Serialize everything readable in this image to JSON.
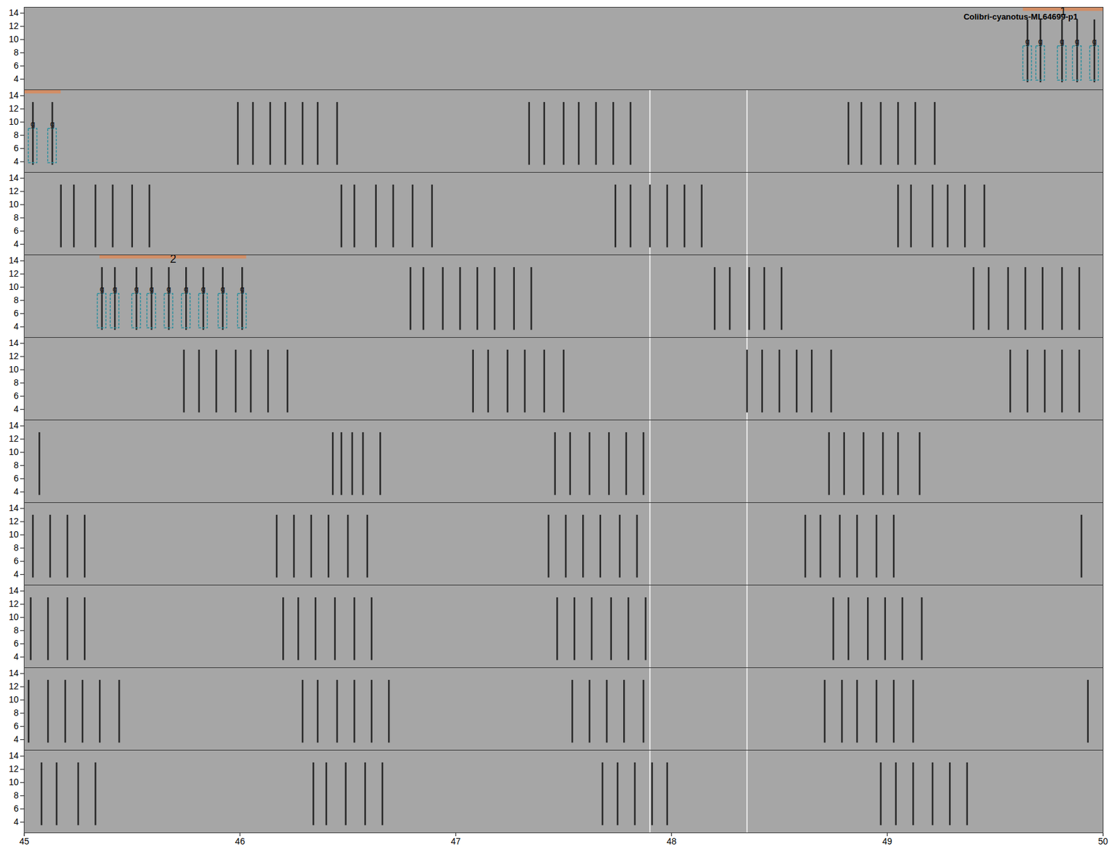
{
  "chart_data": {
    "type": "spectrogram",
    "title": "Colibri-cyanotus-ML64699-p1",
    "xlim": [
      45,
      50
    ],
    "xticks": [
      45,
      46,
      47,
      48,
      49,
      50
    ],
    "ylim": [
      2.4,
      14.9
    ],
    "yticks": [
      4,
      6,
      8,
      10,
      12,
      14
    ],
    "syllable_freq_range": [
      3.5,
      13
    ],
    "box_freq_range": [
      3.8,
      9
    ],
    "band_freq_range": [
      14.3,
      14.9
    ],
    "box_color": "#2a8f9e",
    "band_color": "#d98a5a",
    "color": "#1c1c1c",
    "rows": [
      {
        "syllables": [
          49.65,
          49.71,
          49.81,
          49.88,
          49.96
        ],
        "boundaries": [],
        "boxes": [
          {
            "x1": 49.63,
            "x2": 49.67,
            "label": "g"
          },
          {
            "x1": 49.69,
            "x2": 49.73,
            "label": "g"
          },
          {
            "x1": 49.79,
            "x2": 49.83,
            "label": "g"
          },
          {
            "x1": 49.86,
            "x2": 49.9,
            "label": "g"
          },
          {
            "x1": 49.94,
            "x2": 49.98,
            "label": "g"
          }
        ],
        "bands": [
          {
            "start": 49.63,
            "end": 50,
            "label": "1"
          }
        ]
      },
      {
        "syllables": [
          45.04,
          45.13,
          45.99,
          46.06,
          46.14,
          46.21,
          46.29,
          46.36,
          46.45,
          47.34,
          47.41,
          47.5,
          47.57,
          47.65,
          47.73,
          47.81,
          48.82,
          48.88,
          48.97,
          49.05,
          49.13,
          49.22
        ],
        "boundaries": [
          47.9,
          48.35
        ],
        "boxes": [
          {
            "x1": 45.02,
            "x2": 45.06,
            "label": "g"
          },
          {
            "x1": 45.11,
            "x2": 45.15,
            "label": "g"
          }
        ],
        "bands": [
          {
            "start": 45,
            "end": 45.17
          }
        ]
      },
      {
        "syllables": [
          45.17,
          45.23,
          45.33,
          45.41,
          45.5,
          45.58,
          46.47,
          46.53,
          46.63,
          46.71,
          46.8,
          46.89,
          47.74,
          47.81,
          47.9,
          47.98,
          48.06,
          48.14,
          49.05,
          49.11,
          49.21,
          49.28,
          49.36,
          49.45
        ],
        "boundaries": [
          47.9,
          48.35
        ],
        "boxes": [],
        "bands": []
      },
      {
        "syllables": [
          45.36,
          45.42,
          45.52,
          45.59,
          45.67,
          45.75,
          45.83,
          45.92,
          46.01,
          46.79,
          46.85,
          46.94,
          47.02,
          47.1,
          47.18,
          47.27,
          47.35,
          48.2,
          48.27,
          48.36,
          48.43,
          48.51,
          49.4,
          49.47,
          49.56,
          49.64,
          49.72,
          49.81,
          49.89
        ],
        "boundaries": [
          47.9,
          48.35
        ],
        "boxes": [
          {
            "x1": 45.34,
            "x2": 45.38,
            "label": "g"
          },
          {
            "x1": 45.4,
            "x2": 45.44,
            "label": "g"
          },
          {
            "x1": 45.5,
            "x2": 45.54,
            "label": "g"
          },
          {
            "x1": 45.57,
            "x2": 45.61,
            "label": "g"
          },
          {
            "x1": 45.65,
            "x2": 45.69,
            "label": "g"
          },
          {
            "x1": 45.73,
            "x2": 45.77,
            "label": "g"
          },
          {
            "x1": 45.81,
            "x2": 45.85,
            "label": "g"
          },
          {
            "x1": 45.9,
            "x2": 45.94,
            "label": "g"
          },
          {
            "x1": 45.99,
            "x2": 46.03,
            "label": "g"
          }
        ],
        "bands": [
          {
            "start": 45.35,
            "end": 46.03,
            "label": "2"
          }
        ]
      },
      {
        "syllables": [
          45.74,
          45.81,
          45.89,
          45.98,
          46.05,
          46.13,
          46.22,
          47.08,
          47.15,
          47.24,
          47.32,
          47.41,
          47.5,
          48.35,
          48.42,
          48.5,
          48.58,
          48.65,
          48.74,
          49.57,
          49.65,
          49.73,
          49.81,
          49.89
        ],
        "boundaries": [
          47.9,
          48.35
        ],
        "boxes": [],
        "bands": []
      },
      {
        "syllables": [
          45.07,
          46.43,
          46.47,
          46.52,
          46.57,
          46.65,
          47.46,
          47.53,
          47.62,
          47.71,
          47.79,
          47.87,
          48.73,
          48.8,
          48.89,
          48.98,
          49.05,
          49.15
        ],
        "boundaries": [
          47.9,
          48.35
        ],
        "boxes": [],
        "bands": []
      },
      {
        "syllables": [
          45.04,
          45.12,
          45.2,
          45.28,
          46.17,
          46.25,
          46.33,
          46.41,
          46.5,
          46.59,
          47.43,
          47.51,
          47.59,
          47.67,
          47.76,
          47.84,
          48.62,
          48.69,
          48.78,
          48.86,
          48.95,
          49.03,
          49.9
        ],
        "boundaries": [
          47.9,
          48.35
        ],
        "boxes": [],
        "bands": []
      },
      {
        "syllables": [
          45.03,
          45.11,
          45.2,
          45.28,
          46.2,
          46.27,
          46.35,
          46.44,
          46.53,
          46.61,
          47.47,
          47.55,
          47.63,
          47.72,
          47.8,
          47.88,
          48.75,
          48.82,
          48.91,
          48.99,
          49.07,
          49.16
        ],
        "boundaries": [
          47.9,
          48.35
        ],
        "boxes": [],
        "bands": []
      },
      {
        "syllables": [
          45.02,
          45.11,
          45.19,
          45.27,
          45.35,
          45.44,
          46.29,
          46.36,
          46.45,
          46.53,
          46.61,
          46.69,
          47.54,
          47.62,
          47.7,
          47.78,
          47.87,
          48.71,
          48.79,
          48.86,
          48.95,
          49.03,
          49.12,
          49.93
        ],
        "boundaries": [
          47.9,
          48.35
        ],
        "boxes": [],
        "bands": []
      },
      {
        "syllables": [
          45.08,
          45.15,
          45.25,
          45.33,
          46.34,
          46.4,
          46.49,
          46.58,
          46.66,
          47.68,
          47.75,
          47.83,
          47.91,
          47.98,
          48.97,
          49.04,
          49.12,
          49.21,
          49.29,
          49.37
        ],
        "boundaries": [
          47.9,
          48.35
        ],
        "boxes": [],
        "bands": []
      }
    ]
  }
}
